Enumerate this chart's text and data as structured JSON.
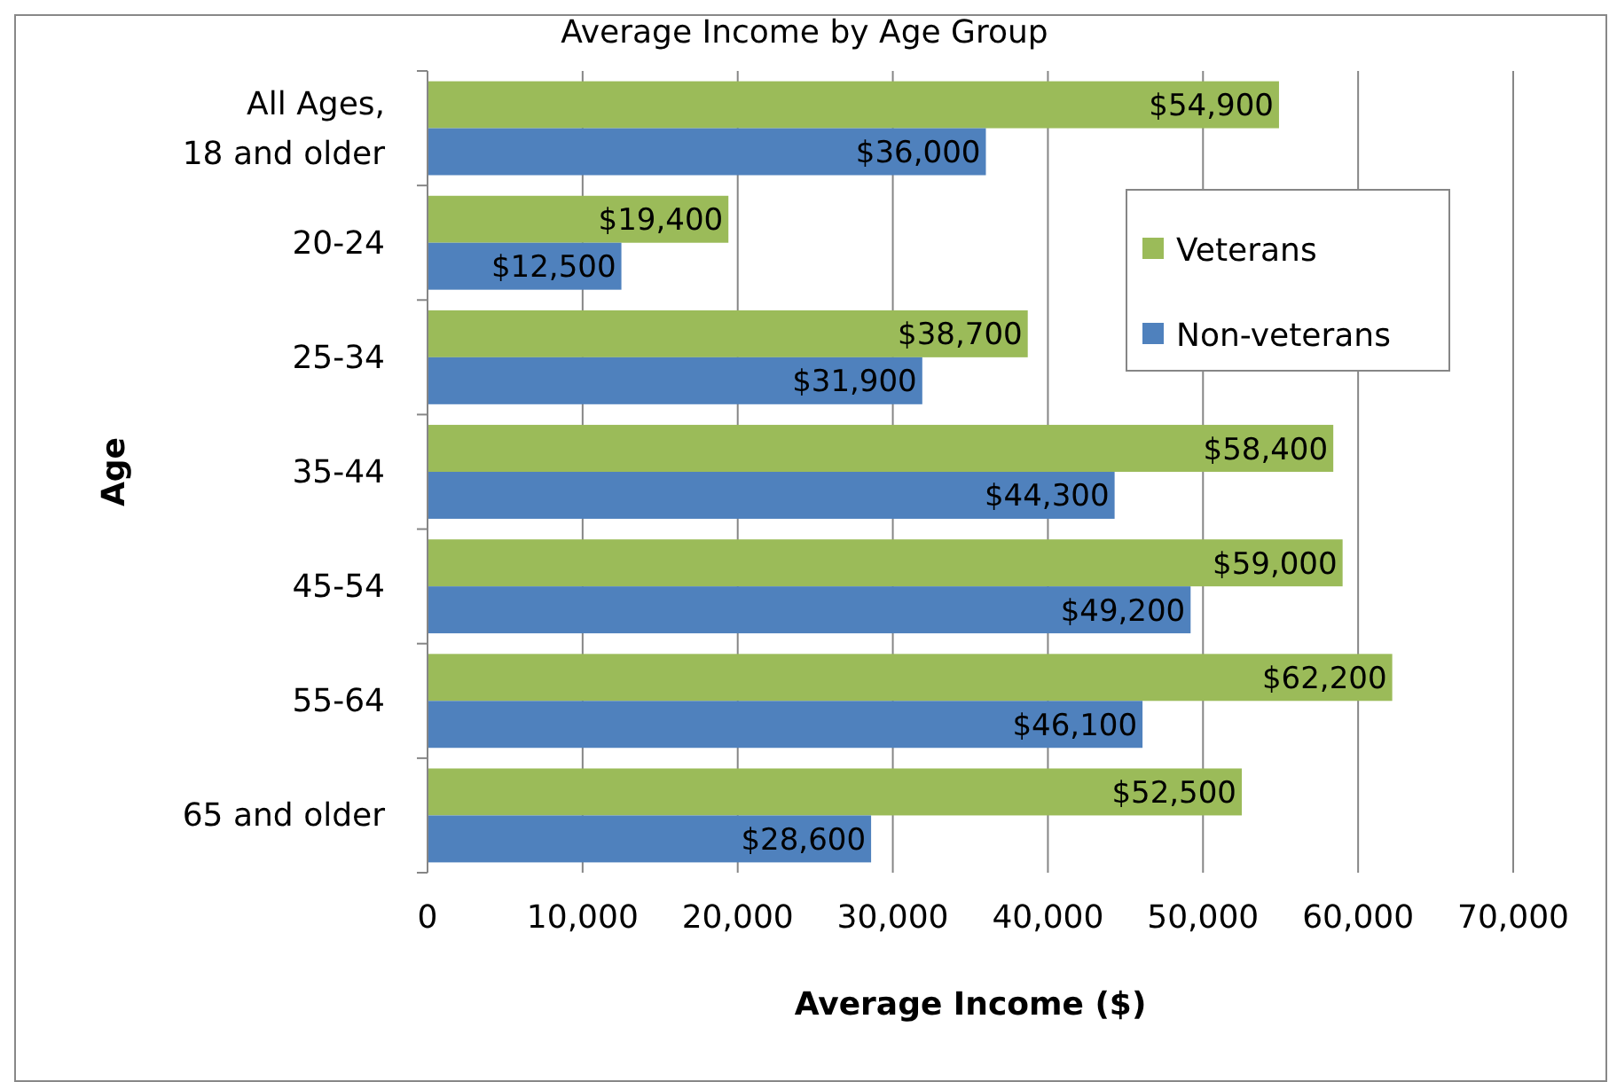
{
  "chart_data": {
    "type": "bar",
    "orientation": "horizontal",
    "title": "Average Income by Age Group",
    "xlabel": "Average Income ($)",
    "ylabel": "Age",
    "categories": [
      "All Ages,\n18 and older",
      "20-24",
      "25-34",
      "35-44",
      "45-54",
      "55-64",
      "65 and older"
    ],
    "series": [
      {
        "name": "Veterans",
        "color": "#9bbb59",
        "values": [
          54900,
          19400,
          38700,
          58400,
          59000,
          62200,
          52500
        ],
        "value_labels": [
          "$54,900",
          "$19,400",
          "$38,700",
          "$58,400",
          "$59,000",
          "$62,200",
          "$52,500"
        ]
      },
      {
        "name": "Non-veterans",
        "color": "#4f81bd",
        "values": [
          36000,
          12500,
          31900,
          44300,
          49200,
          46100,
          28600
        ],
        "value_labels": [
          "$36,000",
          "$12,500",
          "$31,900",
          "$44,300",
          "$49,200",
          "$46,100",
          "$28,600"
        ]
      }
    ],
    "xlim": [
      0,
      70000
    ],
    "xticks": [
      {
        "value": 0,
        "label": "0"
      },
      {
        "value": 10000,
        "label": "10,000"
      },
      {
        "value": 20000,
        "label": "20,000"
      },
      {
        "value": 30000,
        "label": "30,000"
      },
      {
        "value": 40000,
        "label": "40,000"
      },
      {
        "value": 50000,
        "label": "50,000"
      },
      {
        "value": 60000,
        "label": "60,000"
      },
      {
        "value": 70000,
        "label": "70,000"
      }
    ],
    "grid": "x",
    "legend": "top right"
  }
}
